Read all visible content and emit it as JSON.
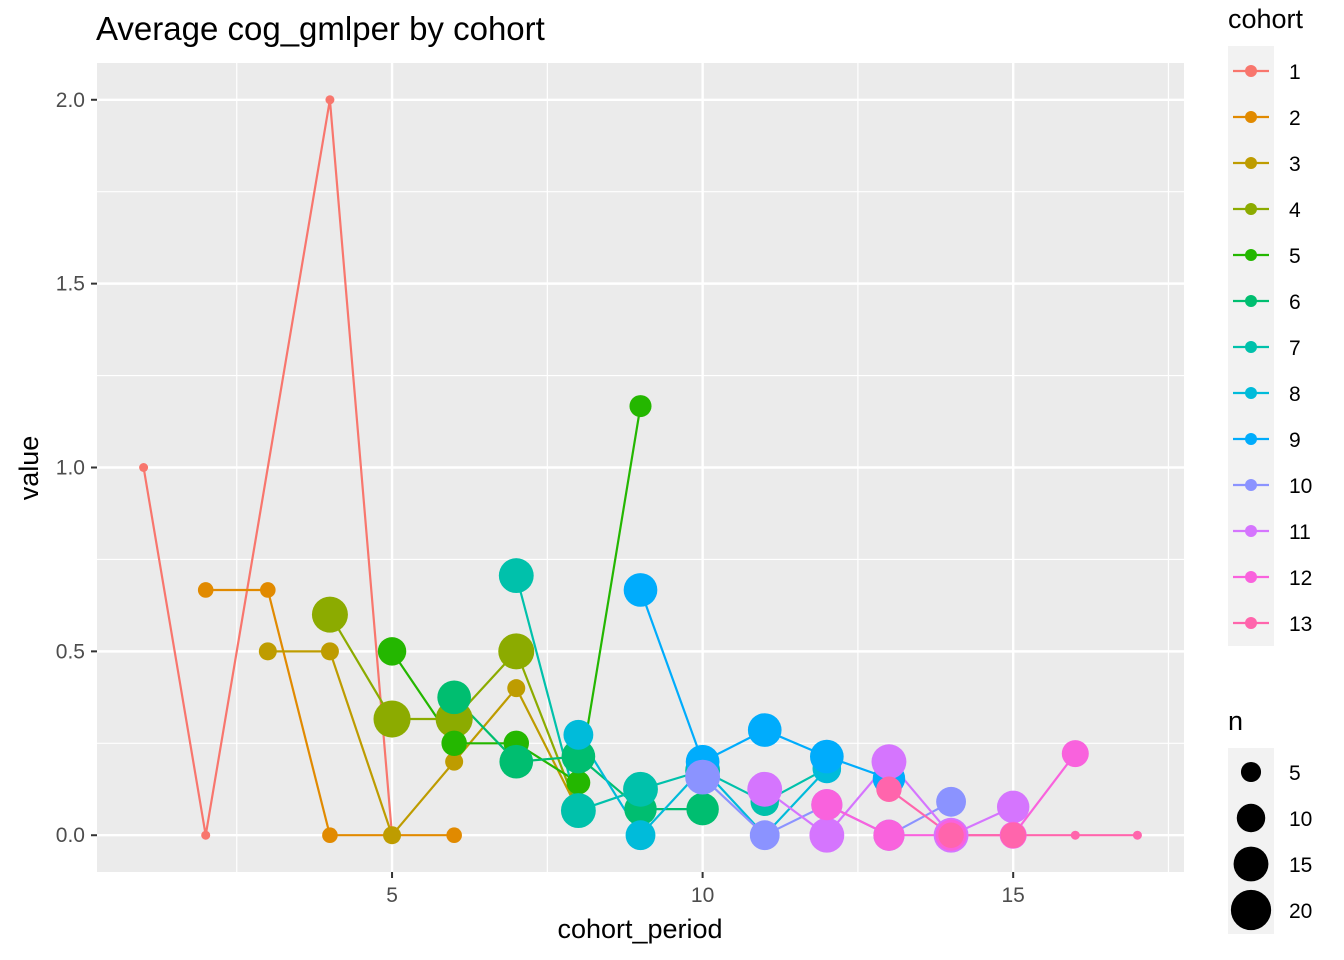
{
  "chart_data": {
    "type": "line",
    "title": "Average cog_gmlper by cohort",
    "xlabel": "cohort_period",
    "ylabel": "value",
    "xlim": [
      0.25,
      17.75
    ],
    "ylim": [
      -0.1,
      2.1
    ],
    "x_ticks": [
      5,
      10,
      15
    ],
    "x_tick_labels": [
      "5",
      "10",
      "15"
    ],
    "y_ticks": [
      0,
      0.5,
      1,
      1.5,
      2
    ],
    "y_tick_labels": [
      "0.0",
      "0.5",
      "1.0",
      "1.5",
      "2.0"
    ],
    "grid": true,
    "legend_placement": "right",
    "color_legend": {
      "title": "cohort",
      "entries": [
        "1",
        "2",
        "3",
        "4",
        "5",
        "6",
        "7",
        "8",
        "9",
        "10",
        "11",
        "12",
        "13"
      ]
    },
    "size_legend": {
      "title": "n",
      "breaks": [
        5,
        10,
        15,
        20
      ],
      "labels": [
        "5",
        "10",
        "15",
        "20"
      ]
    },
    "series": [
      {
        "name": "1",
        "color": "#F8766D",
        "points": [
          {
            "x": 1,
            "y": 1.0,
            "n": 1
          },
          {
            "x": 2,
            "y": 0.0,
            "n": 1
          },
          {
            "x": 4,
            "y": 2.0,
            "n": 1
          },
          {
            "x": 5,
            "y": 0.0,
            "n": 1
          }
        ]
      },
      {
        "name": "2",
        "color": "#E18A00",
        "points": [
          {
            "x": 2,
            "y": 0.667,
            "n": 3
          },
          {
            "x": 3,
            "y": 0.667,
            "n": 3
          },
          {
            "x": 4,
            "y": 0.0,
            "n": 3
          },
          {
            "x": 5,
            "y": 0.0,
            "n": 3
          },
          {
            "x": 6,
            "y": 0.0,
            "n": 3
          }
        ]
      },
      {
        "name": "3",
        "color": "#BE9C00",
        "points": [
          {
            "x": 3,
            "y": 0.5,
            "n": 4
          },
          {
            "x": 4,
            "y": 0.5,
            "n": 4
          },
          {
            "x": 5,
            "y": 0.0,
            "n": 4
          },
          {
            "x": 6,
            "y": 0.2,
            "n": 4
          },
          {
            "x": 7,
            "y": 0.4,
            "n": 4
          },
          {
            "x": 8,
            "y": 0.067,
            "n": 9
          }
        ]
      },
      {
        "name": "4",
        "color": "#8CAB00",
        "points": [
          {
            "x": 4,
            "y": 0.6,
            "n": 16
          },
          {
            "x": 5,
            "y": 0.316,
            "n": 17
          },
          {
            "x": 6,
            "y": 0.316,
            "n": 17
          },
          {
            "x": 7,
            "y": 0.5,
            "n": 16
          },
          {
            "x": 8,
            "y": 0.067,
            "n": 9
          }
        ]
      },
      {
        "name": "5",
        "color": "#24B700",
        "points": [
          {
            "x": 5,
            "y": 0.5,
            "n": 10
          },
          {
            "x": 6,
            "y": 0.25,
            "n": 8
          },
          {
            "x": 7,
            "y": 0.25,
            "n": 8
          },
          {
            "x": 8,
            "y": 0.143,
            "n": 7
          },
          {
            "x": 9,
            "y": 1.167,
            "n": 6
          }
        ]
      },
      {
        "name": "6",
        "color": "#00BE70",
        "points": [
          {
            "x": 6,
            "y": 0.375,
            "n": 14
          },
          {
            "x": 7,
            "y": 0.2,
            "n": 14
          },
          {
            "x": 8,
            "y": 0.214,
            "n": 14
          },
          {
            "x": 9,
            "y": 0.071,
            "n": 13
          },
          {
            "x": 10,
            "y": 0.071,
            "n": 13
          }
        ]
      },
      {
        "name": "7",
        "color": "#00C1AB",
        "points": [
          {
            "x": 7,
            "y": 0.706,
            "n": 15
          },
          {
            "x": 8,
            "y": 0.067,
            "n": 15
          },
          {
            "x": 9,
            "y": 0.125,
            "n": 15
          },
          {
            "x": 10,
            "y": 0.176,
            "n": 15
          },
          {
            "x": 11,
            "y": 0.091,
            "n": 10
          },
          {
            "x": 12,
            "y": 0.182,
            "n": 10
          }
        ]
      },
      {
        "name": "8",
        "color": "#00BBDA",
        "points": [
          {
            "x": 8,
            "y": 0.273,
            "n": 11
          },
          {
            "x": 9,
            "y": 0.0,
            "n": 11
          },
          {
            "x": 10,
            "y": 0.182,
            "n": 11
          },
          {
            "x": 11,
            "y": 0.0,
            "n": 10
          },
          {
            "x": 12,
            "y": 0.18,
            "n": 10
          }
        ]
      },
      {
        "name": "9",
        "color": "#00ACFC",
        "points": [
          {
            "x": 9,
            "y": 0.667,
            "n": 14
          },
          {
            "x": 10,
            "y": 0.2,
            "n": 14
          },
          {
            "x": 11,
            "y": 0.286,
            "n": 14
          },
          {
            "x": 12,
            "y": 0.214,
            "n": 14
          },
          {
            "x": 13,
            "y": 0.154,
            "n": 13
          }
        ]
      },
      {
        "name": "10",
        "color": "#8B93FF",
        "points": [
          {
            "x": 10,
            "y": 0.158,
            "n": 15
          },
          {
            "x": 11,
            "y": 0.0,
            "n": 11
          },
          {
            "x": 12,
            "y": 0.083,
            "n": 12
          },
          {
            "x": 13,
            "y": 0.0,
            "n": 12
          },
          {
            "x": 14,
            "y": 0.091,
            "n": 11
          }
        ]
      },
      {
        "name": "11",
        "color": "#D575FE",
        "points": [
          {
            "x": 11,
            "y": 0.125,
            "n": 15
          },
          {
            "x": 12,
            "y": 0.0,
            "n": 15
          },
          {
            "x": 13,
            "y": 0.2,
            "n": 15
          },
          {
            "x": 14,
            "y": 0.0,
            "n": 15
          },
          {
            "x": 15,
            "y": 0.077,
            "n": 13
          }
        ]
      },
      {
        "name": "12",
        "color": "#F962DD",
        "points": [
          {
            "x": 12,
            "y": 0.083,
            "n": 12
          },
          {
            "x": 13,
            "y": 0.0,
            "n": 12
          },
          {
            "x": 14,
            "y": 0.0,
            "n": 12
          },
          {
            "x": 15,
            "y": 0.0,
            "n": 9
          },
          {
            "x": 16,
            "y": 0.222,
            "n": 9
          }
        ]
      },
      {
        "name": "13",
        "color": "#FF65AC",
        "points": [
          {
            "x": 13,
            "y": 0.125,
            "n": 8
          },
          {
            "x": 14,
            "y": 0.0,
            "n": 8
          },
          {
            "x": 15,
            "y": 0.0,
            "n": 8
          },
          {
            "x": 16,
            "y": 0.0,
            "n": 1
          },
          {
            "x": 17,
            "y": 0.0,
            "n": 1
          }
        ]
      }
    ]
  }
}
